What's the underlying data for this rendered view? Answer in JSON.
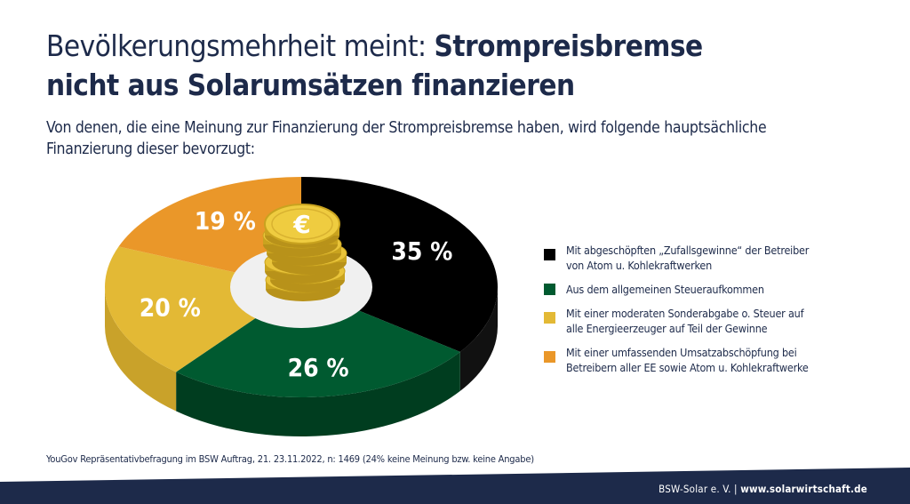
{
  "header": {
    "title_regular": "Bevölkerungsmehrheit meint: ",
    "title_bold_1": "Strompreisbremse",
    "title_bold_2": "nicht aus Solarumsätzen finanzieren",
    "subtitle": "Von denen, die eine Meinung zur Finanzierung der Strompreisbremse haben, wird folgende hauptsächliche Finanzierung dieser bevorzugt:"
  },
  "chart_data": {
    "type": "pie",
    "title": "Bevölkerungsmehrheit meint: Strompreisbremse nicht aus Solarumsätzen finanzieren",
    "unit": "%",
    "legend_position": "right",
    "center_icon": "euro-coin-stack-icon",
    "slices": [
      {
        "label": "Mit abgeschöpften „Zufallsgewinne“ der Betreiber von Atom u. Kohlekraftwerken",
        "value": 35,
        "display": "35 %",
        "color": "#000000",
        "side_color": "#111111"
      },
      {
        "label": "Aus dem allgemeinen Steueraufkommen",
        "value": 26,
        "display": "26 %",
        "color": "#005a30",
        "side_color": "#003d1f"
      },
      {
        "label": "Mit einer moderaten Sonderabgabe o. Steuer auf alle Energieerzeuger auf Teil der Gewinne",
        "value": 20,
        "display": "20 %",
        "color": "#e3b935",
        "side_color": "#c9a22a"
      },
      {
        "label": "Mit einer umfassenden Umsatzabschöpfung bei Betreibern aller EE sowie Atom u. Kohlekraftwerke",
        "value": 19,
        "display": "19 %",
        "color": "#ea9729",
        "side_color": "#c87d1e"
      }
    ]
  },
  "legend": {
    "items": [
      {
        "line1": "Mit abgeschöpften „Zufallsgewinne“ der Betreiber",
        "line2": "von Atom u. Kohlekraftwerken",
        "color": "#000000"
      },
      {
        "line1": "Aus dem allgemeinen Steueraufkommen",
        "line2": "",
        "color": "#005a30"
      },
      {
        "line1": "Mit einer moderaten Sonderabgabe o. Steuer auf",
        "line2": "alle Energieerzeuger auf Teil der Gewinne",
        "color": "#e3b935"
      },
      {
        "line1": "Mit einer umfassenden Umsatzabschöpfung bei",
        "line2": "Betreibern aller EE sowie Atom u. Kohlekraftwerke",
        "color": "#ea9729"
      }
    ]
  },
  "source": "YouGov Repräsentativbefragung im BSW Auftrag, 21. 23.11.2022, n: 1469 (24% keine Meinung bzw. keine Angabe)",
  "footer": {
    "org": "BSW-Solar e. V. | ",
    "url": "www.solarwirtschaft.de",
    "band_color": "#1d2a4a"
  }
}
